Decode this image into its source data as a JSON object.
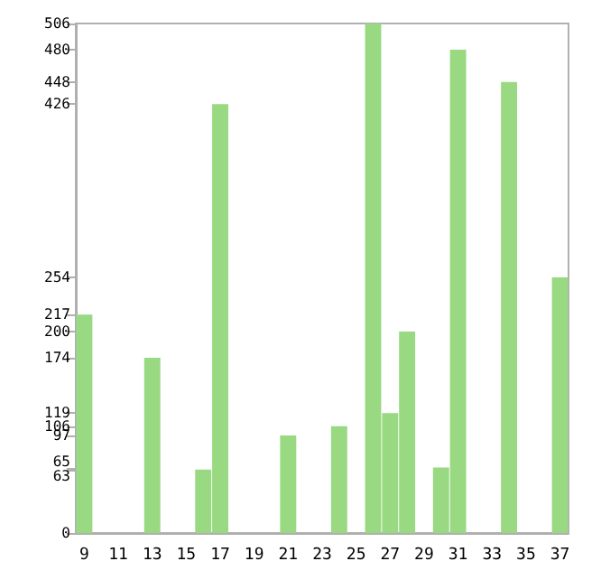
{
  "chart_data": {
    "type": "bar",
    "categories": [
      "9",
      null,
      "11",
      null,
      "13",
      null,
      "15",
      null,
      "17",
      null,
      "19",
      null,
      "21",
      null,
      "23",
      null,
      "25",
      null,
      "27",
      null,
      "29",
      null,
      "31",
      null,
      "33",
      null,
      "35",
      null,
      "37"
    ],
    "values": [
      217,
      0,
      0,
      0,
      174,
      0,
      0,
      63,
      426,
      0,
      0,
      0,
      97,
      0,
      0,
      106,
      0,
      506,
      119,
      200,
      0,
      65,
      480,
      0,
      0,
      448,
      0,
      0,
      254
    ],
    "color": "#98d982",
    "ylim": [
      0,
      506
    ],
    "yticks": [
      0,
      63,
      65,
      97,
      106,
      119,
      174,
      200,
      217,
      254,
      426,
      448,
      480,
      506
    ],
    "grid": false
  }
}
